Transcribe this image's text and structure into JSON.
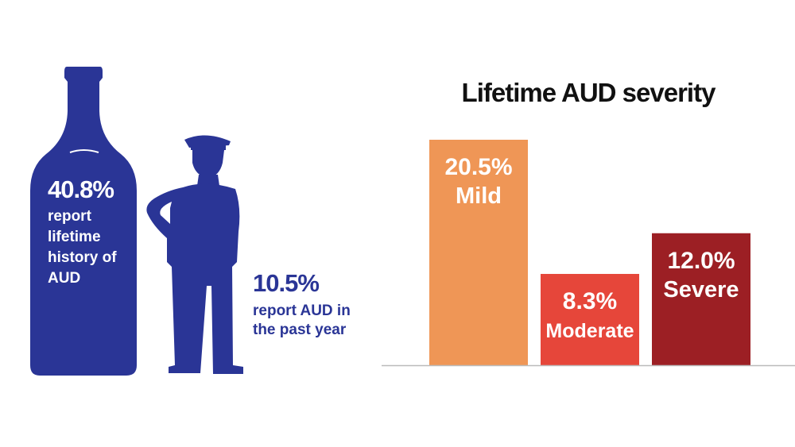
{
  "colors": {
    "navy": "#2a3596",
    "mild": "#ef9656",
    "moderate": "#e6463a",
    "severe": "#9c1f24",
    "baseline": "#bbbbbb"
  },
  "icons": {
    "bottle": "bottle-icon",
    "person": "soldier-silhouette-icon"
  },
  "lifetime": {
    "value": "40.8%",
    "description": "report lifetime history of AUD"
  },
  "past_year": {
    "value": "10.5%",
    "description": "report AUD in the past year"
  },
  "chart_data": {
    "type": "bar",
    "title": "Lifetime AUD severity",
    "categories": [
      "Mild",
      "Moderate",
      "Severe"
    ],
    "values": [
      20.5,
      8.3,
      12.0
    ],
    "value_labels": [
      "20.5%",
      "8.3%",
      "12.0%"
    ],
    "colors": [
      "#ef9656",
      "#e6463a",
      "#9c1f24"
    ],
    "xlabel": "",
    "ylabel": "",
    "ylim": [
      0,
      20.5
    ],
    "grid": false,
    "legend": "none"
  }
}
